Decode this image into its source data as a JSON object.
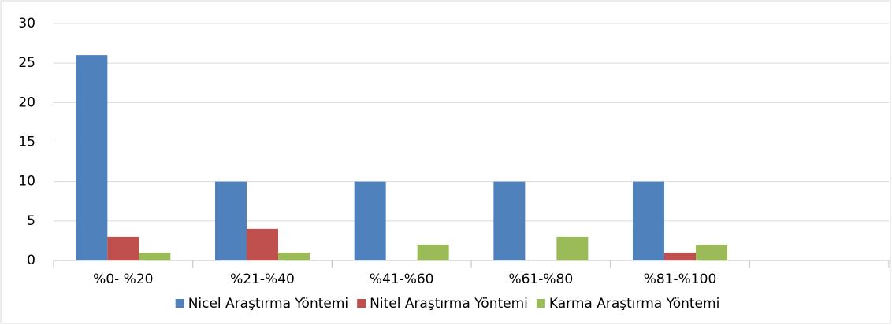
{
  "chart_data": {
    "type": "bar",
    "categories": [
      "%0- %20",
      "%21-%40",
      "%41-%60",
      "%61-%80",
      "%81-%100",
      null
    ],
    "series": [
      {
        "name": "Nicel Araştırma Yöntemi",
        "color": "#4f81bd",
        "values": [
          26,
          10,
          10,
          10,
          10,
          null
        ]
      },
      {
        "name": "Nitel Araştırma Yöntemi",
        "color": "#c0504d",
        "values": [
          3,
          4,
          0,
          0,
          1,
          null
        ]
      },
      {
        "name": "Karma Araştırma Yöntemi",
        "color": "#9bbb59",
        "values": [
          1,
          1,
          2,
          3,
          2,
          null
        ]
      }
    ],
    "ylim": [
      0,
      30
    ],
    "yticks": [
      0,
      5,
      10,
      15,
      20,
      25,
      30
    ],
    "grid": true,
    "legend": "bottom"
  }
}
